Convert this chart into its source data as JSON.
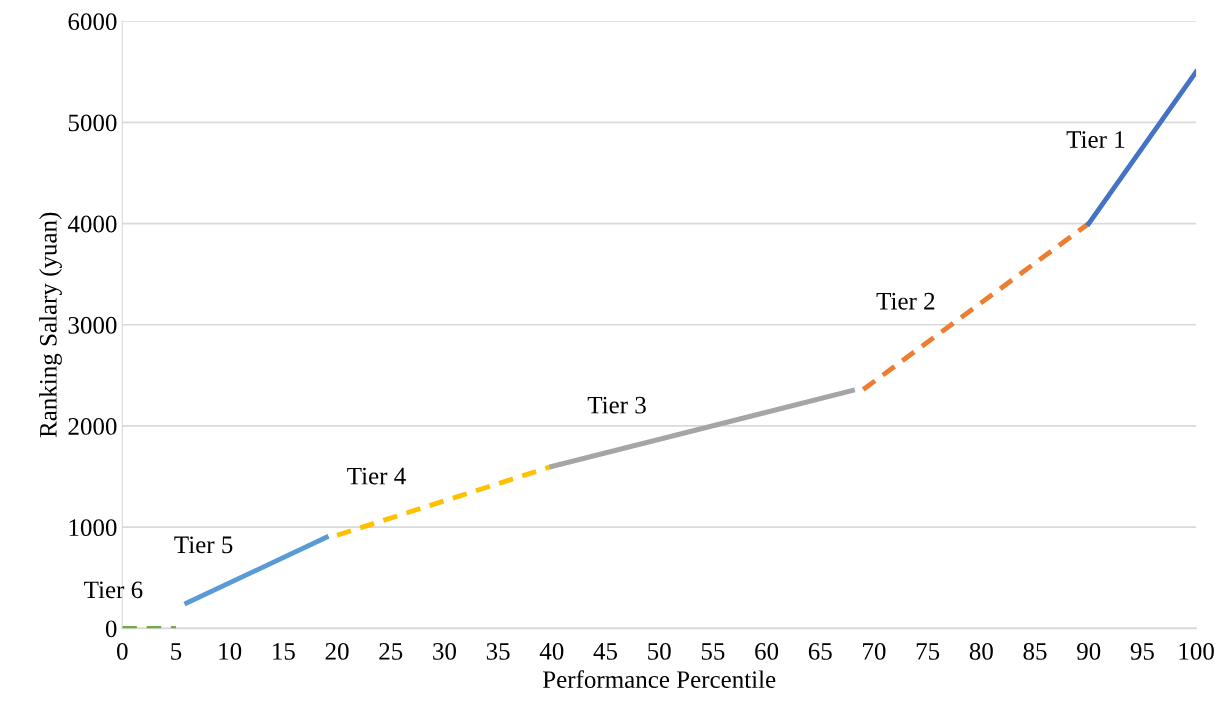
{
  "chart_data": {
    "type": "line",
    "xlabel": "Performance Percentile",
    "ylabel": "Ranking Salary (yuan)",
    "xlim": [
      0,
      100
    ],
    "xticks": [
      0,
      5,
      10,
      15,
      20,
      25,
      30,
      35,
      40,
      45,
      50,
      55,
      60,
      65,
      70,
      75,
      80,
      85,
      90,
      95,
      100
    ],
    "ylim": [
      0,
      6000
    ],
    "yticks": [
      0,
      1000,
      2000,
      3000,
      4000,
      5000,
      6000
    ],
    "grid": "y",
    "legend": false,
    "marker": "none",
    "series": [
      {
        "name": "Tier 6",
        "x": [
          0,
          5
        ],
        "values": [
          0,
          0
        ],
        "color": "#70ad47",
        "line_style": "dashed"
      },
      {
        "name": "Tier 5",
        "x": [
          6,
          19
        ],
        "values": [
          250,
          900
        ],
        "color": "#5b9bd5",
        "line_style": "solid"
      },
      {
        "name": "Tier 4",
        "x": [
          20,
          40
        ],
        "values": [
          920,
          1600
        ],
        "color": "#ffc000",
        "line_style": "dashed"
      },
      {
        "name": "Tier 3",
        "x": [
          40,
          68
        ],
        "values": [
          1600,
          2350
        ],
        "color": "#a5a5a5",
        "line_style": "solid"
      },
      {
        "name": "Tier 2",
        "x": [
          69,
          90
        ],
        "values": [
          2360,
          4000
        ],
        "color": "#ed7d31",
        "line_style": "dashed"
      },
      {
        "name": "Tier 1",
        "x": [
          90,
          100
        ],
        "values": [
          4000,
          5500
        ],
        "color": "#4472c4",
        "line_style": "solid"
      }
    ]
  }
}
